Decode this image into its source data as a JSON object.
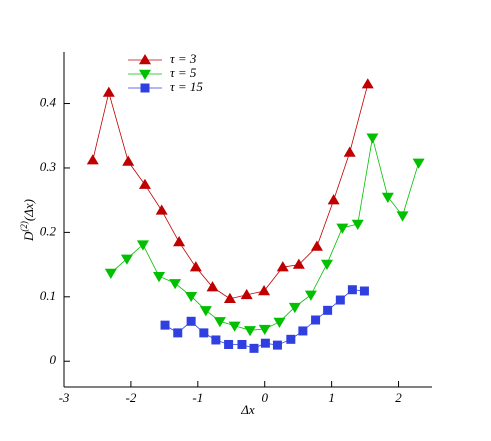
{
  "chart_data": {
    "type": "line",
    "x_label": "Δx",
    "y_label": {
      "main": "D",
      "sup": "(2)",
      "rest": "(Δx)"
    },
    "xlim": [
      -3,
      2.5
    ],
    "xticks": [
      -3,
      -2,
      -1,
      0,
      1,
      2
    ],
    "ylim": [
      -0.04,
      0.48
    ],
    "yticks": [
      0,
      0.1,
      0.2,
      0.3,
      0.4
    ],
    "legend": "top-left",
    "series": [
      {
        "name": "τ = 3",
        "color": "#c00000",
        "marker": "triangle-up",
        "x": [
          -2.57,
          -2.33,
          -2.04,
          -1.79,
          -1.54,
          -1.28,
          -1.03,
          -0.78,
          -0.52,
          -0.27,
          -0.01,
          0.27,
          0.51,
          0.78,
          1.03,
          1.27,
          1.54
        ],
        "values": [
          0.312,
          0.417,
          0.31,
          0.274,
          0.234,
          0.185,
          0.146,
          0.115,
          0.097,
          0.103,
          0.109,
          0.146,
          0.15,
          0.178,
          0.25,
          0.324,
          0.43
        ]
      },
      {
        "name": "τ = 5",
        "color": "#00c000",
        "marker": "triangle-down",
        "x": [
          -2.3,
          -2.06,
          -1.82,
          -1.58,
          -1.34,
          -1.1,
          -0.88,
          -0.67,
          -0.45,
          -0.22,
          0,
          0.22,
          0.45,
          0.69,
          0.93,
          1.16,
          1.39,
          1.61,
          1.84,
          2.06,
          2.3
        ],
        "values": [
          0.137,
          0.159,
          0.181,
          0.132,
          0.121,
          0.101,
          0.079,
          0.062,
          0.055,
          0.048,
          0.05,
          0.061,
          0.084,
          0.103,
          0.151,
          0.207,
          0.213,
          0.347,
          0.255,
          0.226,
          0.308
        ]
      },
      {
        "name": "τ = 15",
        "color": "#3040e0",
        "marker": "square",
        "x": [
          -1.49,
          -1.3,
          -1.1,
          -0.91,
          -0.73,
          -0.54,
          -0.34,
          -0.16,
          0.01,
          0.19,
          0.39,
          0.57,
          0.76,
          0.94,
          1.13,
          1.31,
          1.49
        ],
        "values": [
          0.056,
          0.044,
          0.062,
          0.044,
          0.033,
          0.026,
          0.026,
          0.02,
          0.028,
          0.025,
          0.034,
          0.047,
          0.064,
          0.079,
          0.095,
          0.111,
          0.109
        ]
      }
    ]
  }
}
